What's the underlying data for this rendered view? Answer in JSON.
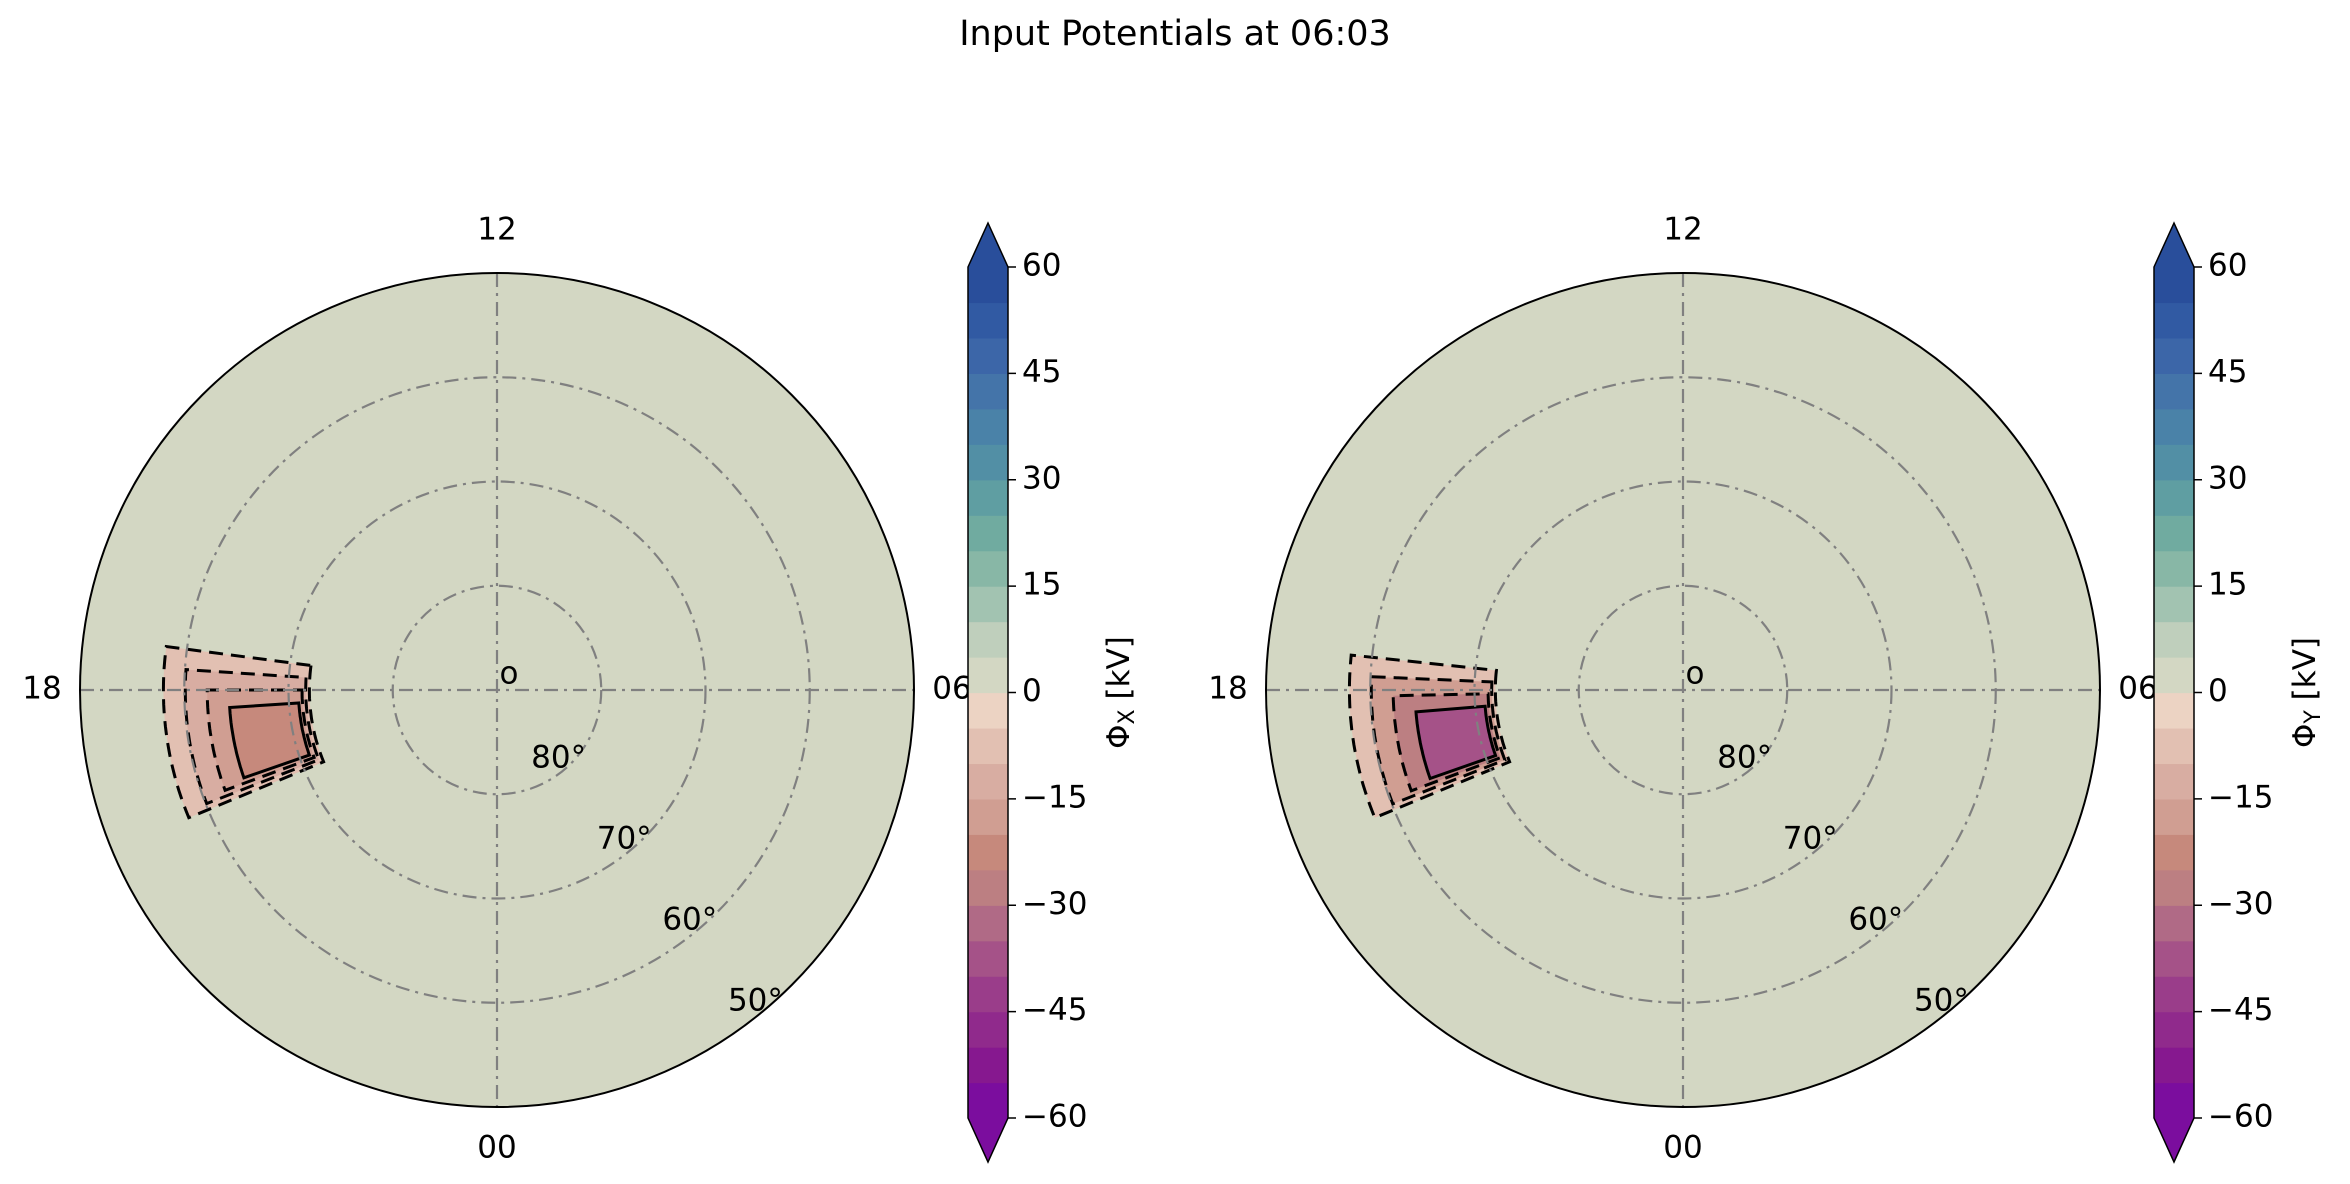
{
  "figure": {
    "title": "Input Potentials at 06:03"
  },
  "chart_data": [
    {
      "type": "polar-contour",
      "panel": "left",
      "mlt_labels": {
        "top": "12",
        "left": "18",
        "right": "06",
        "bottom": "00"
      },
      "latitude_rings": [
        80,
        70,
        60,
        50
      ],
      "latitude_labels": [
        "80°",
        "70°",
        "60°",
        "50°"
      ],
      "latitude_range": [
        50,
        90
      ],
      "pole_label": "o",
      "grid": true,
      "colorbar": {
        "label_symbol": "Φ",
        "label_sub": "X",
        "label_unit": " [kV]",
        "range": [
          -60,
          60
        ],
        "ticks": [
          60,
          45,
          30,
          15,
          0,
          -15,
          -30,
          -45,
          -60
        ],
        "tick_labels": [
          "60",
          "45",
          "30",
          "15",
          "0",
          "−15",
          "−30",
          "−45",
          "−60"
        ],
        "extend": "both"
      },
      "background_level_kV": 0,
      "feature": {
        "mlt_range": [
          17.5,
          19.5
        ],
        "latitude_range": [
          58,
          72
        ],
        "min_value_kV": -25,
        "contour_style": "dashed"
      }
    },
    {
      "type": "polar-contour",
      "panel": "right",
      "mlt_labels": {
        "top": "12",
        "left": "18",
        "right": "06",
        "bottom": "00"
      },
      "latitude_rings": [
        80,
        70,
        60,
        50
      ],
      "latitude_labels": [
        "80°",
        "70°",
        "60°",
        "50°"
      ],
      "latitude_range": [
        50,
        90
      ],
      "pole_label": "o",
      "grid": true,
      "colorbar": {
        "label_symbol": "Φ",
        "label_sub": "Y",
        "label_unit": " [kV]",
        "range": [
          -60,
          60
        ],
        "ticks": [
          60,
          45,
          30,
          15,
          0,
          -15,
          -30,
          -45,
          -60
        ],
        "tick_labels": [
          "60",
          "45",
          "30",
          "15",
          "0",
          "−15",
          "−30",
          "−45",
          "−60"
        ],
        "extend": "both"
      },
      "background_level_kV": 0,
      "feature": {
        "mlt_range": [
          17.6,
          19.5
        ],
        "latitude_range": [
          58,
          72
        ],
        "min_value_kV": -40,
        "contour_style": "dashed"
      }
    }
  ],
  "colormap": [
    "#7b0d9e",
    "#86188f",
    "#902a8c",
    "#9a3d8a",
    "#a55288",
    "#b06a86",
    "#bc7f82",
    "#c6897c",
    "#d09e92",
    "#d8ada2",
    "#e2c0b2",
    "#ecd3c3",
    "#d3d7c3",
    "#bfcfbc",
    "#a2c3b1",
    "#88b7a6",
    "#70aba0",
    "#5f9ea2",
    "#528fa5",
    "#4a82a8",
    "#4474a9",
    "#3c66a8",
    "#315aa3",
    "#294e9b"
  ]
}
